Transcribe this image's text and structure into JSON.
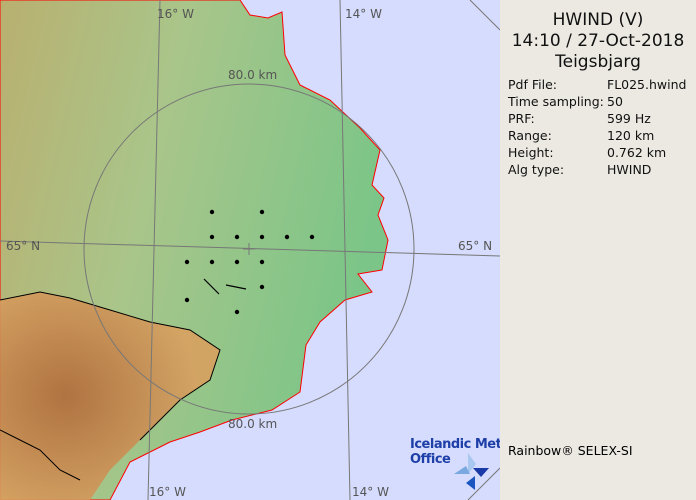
{
  "panel": {
    "title": "HWIND (V)",
    "datetime": "14:10 / 27-Oct-2018",
    "site": "Teigsbjarg",
    "rows": [
      {
        "k": "Pdf File:",
        "v": "FL025.hwind"
      },
      {
        "k": "Time sampling:",
        "v": "50"
      },
      {
        "k": "PRF:",
        "v": "599 Hz"
      },
      {
        "k": "Range:",
        "v": "120 km"
      },
      {
        "k": "Height:",
        "v": "0.762 km"
      },
      {
        "k": "Alg type:",
        "v": "HWIND"
      }
    ],
    "credit": "Rainbow® SELEX-SI"
  },
  "map": {
    "labels": {
      "lon16_top": "16° W",
      "lon14_top": "14° W",
      "lon16_bot": "16° W",
      "lon14_bot": "14° W",
      "lat65_left": "65° N",
      "lat65_right": "65° N",
      "range_top": "80.0 km",
      "range_bot": "80.0 km"
    },
    "logo": {
      "line1": "Icelandic Met",
      "line2": "Office"
    },
    "colors": {
      "sea": "#d5dcfd",
      "coast": "#ff0000",
      "land_low": "#8cc98a",
      "land_high": "#c98a4a"
    }
  }
}
